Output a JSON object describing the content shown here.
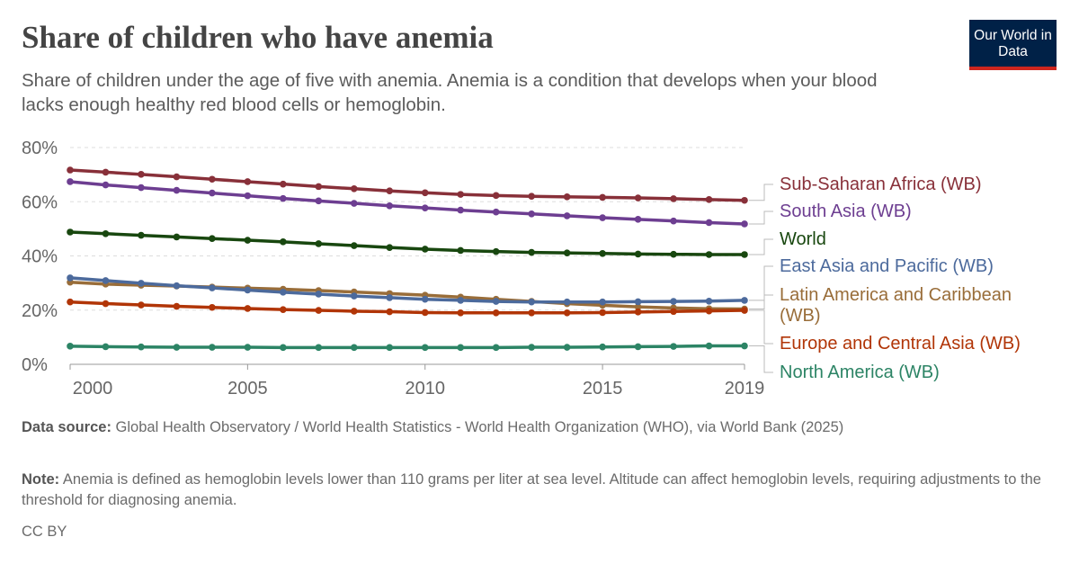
{
  "header": {
    "title": "Share of children who have anemia",
    "subtitle": "Share of children under the age of five with anemia. Anemia is a condition that develops when your blood lacks enough healthy red blood cells or hemoglobin.",
    "logo": "Our World in Data"
  },
  "chart_data": {
    "type": "line",
    "title": "Share of children who have anemia",
    "xlim": [
      2000,
      2019
    ],
    "ylim": [
      0,
      80
    ],
    "grid": true,
    "x_ticks": [
      "2000",
      "2005",
      "2010",
      "2015",
      "2019"
    ],
    "y_ticks": [
      "0%",
      "20%",
      "40%",
      "60%",
      "80%"
    ],
    "x": [
      2000,
      2001,
      2002,
      2003,
      2004,
      2005,
      2006,
      2007,
      2008,
      2009,
      2010,
      2011,
      2012,
      2013,
      2014,
      2015,
      2016,
      2017,
      2018,
      2019
    ],
    "series": [
      {
        "name": "Sub-Saharan Africa (WB)",
        "color": "#883039",
        "values": [
          71.7,
          70.9,
          70.1,
          69.2,
          68.3,
          67.4,
          66.5,
          65.6,
          64.8,
          64.0,
          63.3,
          62.7,
          62.3,
          62.0,
          61.8,
          61.6,
          61.4,
          61.1,
          60.8,
          60.5
        ]
      },
      {
        "name": "South Asia (WB)",
        "color": "#6d3e91",
        "values": [
          67.4,
          66.2,
          65.2,
          64.2,
          63.2,
          62.2,
          61.2,
          60.3,
          59.4,
          58.5,
          57.7,
          56.9,
          56.2,
          55.5,
          54.8,
          54.1,
          53.5,
          52.9,
          52.3,
          51.8
        ]
      },
      {
        "name": "World",
        "color": "#18470f",
        "values": [
          48.8,
          48.2,
          47.6,
          47.0,
          46.4,
          45.8,
          45.2,
          44.5,
          43.8,
          43.1,
          42.5,
          42.0,
          41.6,
          41.3,
          41.1,
          40.9,
          40.7,
          40.6,
          40.5,
          40.5
        ]
      },
      {
        "name": "Latin America and Caribbean (WB)",
        "color": "#996d39",
        "values": [
          30.3,
          29.6,
          29.2,
          28.9,
          28.5,
          28.1,
          27.7,
          27.2,
          26.7,
          26.1,
          25.5,
          24.8,
          24.0,
          23.2,
          22.4,
          21.8,
          21.2,
          20.8,
          20.5,
          20.4
        ]
      },
      {
        "name": "East Asia and Pacific (WB)",
        "color": "#4c6a9c",
        "values": [
          31.9,
          30.9,
          29.9,
          29.0,
          28.2,
          27.4,
          26.6,
          25.9,
          25.2,
          24.6,
          24.0,
          23.6,
          23.2,
          23.0,
          23.0,
          23.0,
          23.1,
          23.2,
          23.3,
          23.6
        ]
      },
      {
        "name": "Europe and Central Asia (WB)",
        "color": "#b13507",
        "values": [
          23.0,
          22.4,
          21.9,
          21.4,
          21.0,
          20.6,
          20.2,
          19.9,
          19.6,
          19.4,
          19.1,
          19.0,
          19.0,
          19.0,
          19.0,
          19.1,
          19.3,
          19.5,
          19.7,
          19.9
        ]
      },
      {
        "name": "North America (WB)",
        "color": "#2c8465",
        "values": [
          6.7,
          6.5,
          6.4,
          6.3,
          6.3,
          6.3,
          6.2,
          6.2,
          6.2,
          6.2,
          6.2,
          6.2,
          6.2,
          6.3,
          6.3,
          6.4,
          6.5,
          6.6,
          6.8,
          6.8
        ]
      }
    ]
  },
  "footer": {
    "source_label": "Data source:",
    "source": "Global Health Observatory / World Health Statistics - World Health Organization (WHO), via World Bank (2025)",
    "note_label": "Note:",
    "note": "Anemia is defined as hemoglobin levels lower than 110 grams per liter at sea level. Altitude can affect hemoglobin levels, requiring adjustments to the threshold for diagnosing anemia.",
    "license": "CC BY"
  }
}
